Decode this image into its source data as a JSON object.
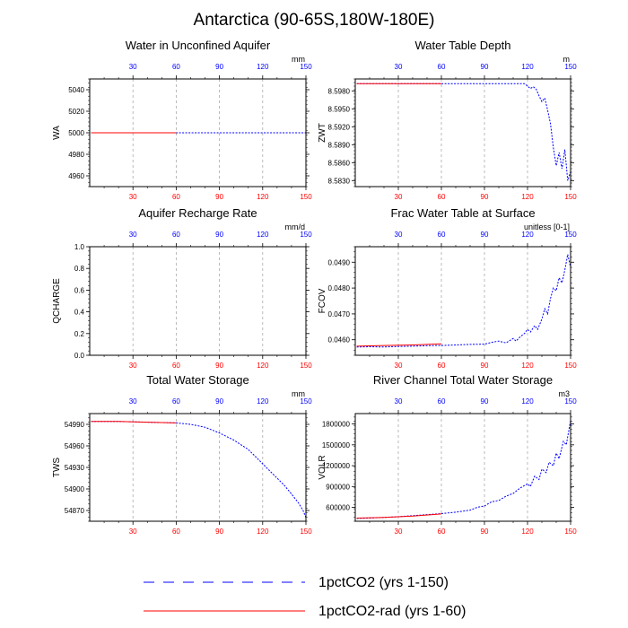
{
  "figure": {
    "title": "Antarctica (90-65S,180W-180E)"
  },
  "colors": {
    "series_a": "#0000ff",
    "series_b": "#ff0000",
    "grid": "#aaaaaa"
  },
  "legend": {
    "items": [
      {
        "label": "1pctCO2 (yrs 1-150)",
        "style": "dashed",
        "color": "#0000ff"
      },
      {
        "label": "1pctCO2-rad (yrs 1-60)",
        "style": "solid",
        "color": "#ff0000"
      }
    ]
  },
  "chart_data": [
    {
      "id": "wa",
      "type": "line",
      "title": "Water in Unconfined Aquifer",
      "ylabel": "WA",
      "units": "mm",
      "xlim": [
        0,
        150
      ],
      "ylim": [
        4950,
        5050
      ],
      "yticks": [
        "4960",
        "4980",
        "5000",
        "5020",
        "5040"
      ],
      "xticks_bottom": [
        "30",
        "60",
        "90",
        "120",
        "150"
      ],
      "xticks_top": [
        "30",
        "60",
        "90",
        "120",
        "150"
      ],
      "series": [
        {
          "style": "dashed",
          "x": [
            1,
            150
          ],
          "y": [
            5000,
            5000
          ]
        },
        {
          "style": "solid",
          "x": [
            1,
            60
          ],
          "y": [
            5000,
            5000
          ]
        }
      ]
    },
    {
      "id": "zwt",
      "type": "line",
      "title": "Water Table Depth",
      "ylabel": "ZWT",
      "units": "m",
      "xlim": [
        0,
        150
      ],
      "ylim": [
        8.582,
        8.6
      ],
      "yticks": [
        "8.5830",
        "8.5860",
        "8.5890",
        "8.5920",
        "8.5950",
        "8.5980"
      ],
      "xticks_bottom": [
        "30",
        "60",
        "90",
        "120",
        "150"
      ],
      "xticks_top": [
        "30",
        "60",
        "90",
        "120",
        "150"
      ],
      "series": [
        {
          "style": "dashed",
          "x": [
            1,
            30,
            60,
            90,
            118,
            120,
            122,
            124,
            126,
            128,
            130,
            132,
            134,
            136,
            138,
            140,
            142,
            144,
            146,
            148,
            150
          ],
          "y": [
            8.5992,
            8.5992,
            8.5992,
            8.5992,
            8.5992,
            8.5988,
            8.5984,
            8.5987,
            8.5983,
            8.5972,
            8.5962,
            8.5968,
            8.5948,
            8.5925,
            8.5885,
            8.5855,
            8.5877,
            8.585,
            8.5882,
            8.583,
            8.5845
          ]
        },
        {
          "style": "solid",
          "x": [
            1,
            60
          ],
          "y": [
            8.5992,
            8.5992
          ]
        }
      ]
    },
    {
      "id": "qcharge",
      "type": "line",
      "title": "Aquifer Recharge Rate",
      "ylabel": "QCHARGE",
      "units": "mm/d",
      "xlim": [
        0,
        150
      ],
      "ylim": [
        0,
        1
      ],
      "yticks": [
        "0.0",
        "0.2",
        "0.4",
        "0.6",
        "0.8",
        "1.0"
      ],
      "xticks_bottom": [
        "30",
        "60",
        "90",
        "120",
        "150"
      ],
      "xticks_top": [
        "30",
        "60",
        "90",
        "120",
        "150"
      ],
      "series": []
    },
    {
      "id": "fcov",
      "type": "line",
      "title": "Frac Water Table at Surface",
      "ylabel": "FCOV",
      "units": "unitless [0-1]",
      "xlim": [
        0,
        150
      ],
      "ylim": [
        0.0454,
        0.0496
      ],
      "yticks": [
        "0.0460",
        "0.0470",
        "0.0480",
        "0.0490"
      ],
      "xticks_bottom": [
        "30",
        "60",
        "90",
        "120",
        "150"
      ],
      "xticks_top": [
        "30",
        "60",
        "90",
        "120",
        "150"
      ],
      "series": [
        {
          "style": "dashed",
          "x": [
            1,
            10,
            20,
            30,
            40,
            50,
            60,
            70,
            80,
            90,
            95,
            100,
            105,
            110,
            112,
            115,
            118,
            120,
            122,
            125,
            127,
            130,
            132,
            134,
            136,
            138,
            140,
            142,
            144,
            146,
            148,
            150
          ],
          "y": [
            0.04572,
            0.04573,
            0.04572,
            0.04574,
            0.04575,
            0.04577,
            0.04578,
            0.0458,
            0.04582,
            0.04583,
            0.0459,
            0.04595,
            0.04588,
            0.04605,
            0.04595,
            0.04612,
            0.04625,
            0.0464,
            0.0463,
            0.04655,
            0.0464,
            0.0468,
            0.0472,
            0.047,
            0.0476,
            0.048,
            0.0479,
            0.0484,
            0.0482,
            0.0487,
            0.0493,
            0.0488
          ]
        },
        {
          "style": "solid",
          "x": [
            1,
            20,
            40,
            60
          ],
          "y": [
            0.04575,
            0.04578,
            0.0458,
            0.04584
          ]
        }
      ]
    },
    {
      "id": "tws",
      "type": "line",
      "title": "Total Water Storage",
      "ylabel": "TWS",
      "units": "mm",
      "xlim": [
        0,
        150
      ],
      "ylim": [
        54855,
        55005
      ],
      "yticks": [
        "54870",
        "54900",
        "54930",
        "54960",
        "54990"
      ],
      "xticks_bottom": [
        "30",
        "60",
        "90",
        "120",
        "150"
      ],
      "xticks_top": [
        "30",
        "60",
        "90",
        "120",
        "150"
      ],
      "series": [
        {
          "style": "dashed",
          "x": [
            1,
            20,
            40,
            60,
            70,
            80,
            90,
            100,
            110,
            115,
            120,
            125,
            130,
            135,
            140,
            145,
            148,
            150
          ],
          "y": [
            54994,
            54994,
            54993,
            54992,
            54990,
            54986,
            54978,
            54968,
            54955,
            54945,
            54935,
            54925,
            54915,
            54905,
            54893,
            54880,
            54870,
            54860
          ]
        },
        {
          "style": "solid",
          "x": [
            1,
            20,
            40,
            60
          ],
          "y": [
            54994,
            54994,
            54993,
            54992
          ]
        }
      ]
    },
    {
      "id": "volr",
      "type": "line",
      "title": "River Channel Total Water Storage",
      "ylabel": "VOLR",
      "units": "m3",
      "xlim": [
        0,
        150
      ],
      "ylim": [
        400000,
        1950000
      ],
      "yticks": [
        "600000",
        "900000",
        "1200000",
        "1500000",
        "1800000"
      ],
      "xticks_bottom": [
        "30",
        "60",
        "90",
        "120",
        "150"
      ],
      "xticks_top": [
        "30",
        "60",
        "90",
        "120",
        "150"
      ],
      "series": [
        {
          "style": "dashed",
          "x": [
            1,
            10,
            20,
            30,
            40,
            50,
            60,
            70,
            80,
            85,
            90,
            95,
            100,
            105,
            110,
            115,
            120,
            122,
            125,
            128,
            130,
            133,
            135,
            138,
            140,
            142,
            145,
            147,
            150
          ],
          "y": [
            440000,
            445000,
            455000,
            465000,
            480000,
            495000,
            510000,
            530000,
            560000,
            600000,
            620000,
            680000,
            700000,
            760000,
            800000,
            880000,
            940000,
            900000,
            1050000,
            1000000,
            1150000,
            1100000,
            1250000,
            1200000,
            1380000,
            1300000,
            1550000,
            1500000,
            1850000
          ]
        },
        {
          "style": "solid",
          "x": [
            1,
            20,
            40,
            60
          ],
          "y": [
            445000,
            455000,
            475000,
            505000
          ]
        }
      ]
    }
  ]
}
